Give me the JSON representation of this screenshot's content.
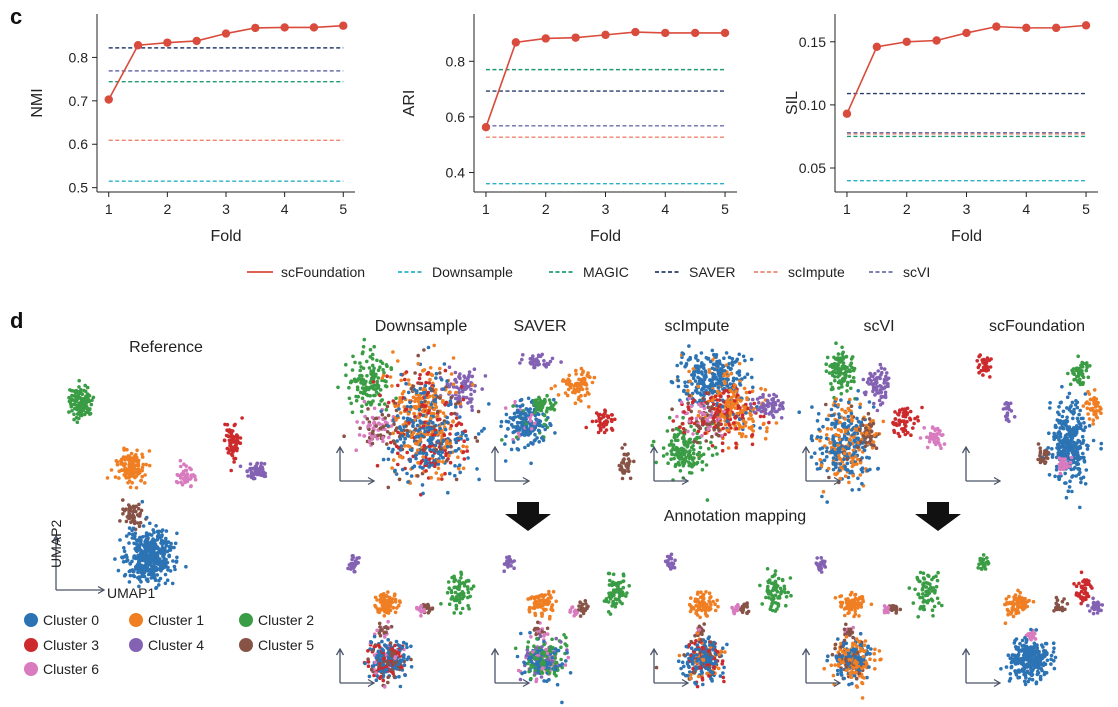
{
  "panel_labels": {
    "c": "c",
    "d": "d"
  },
  "colors": {
    "scFoundation": "#d94b3c",
    "Downsample": "#2bb0c8",
    "MAGIC": "#1f9a72",
    "SAVER": "#283c6e",
    "scImpute": "#f0836e",
    "scVI": "#6a6fa8",
    "Cluster 0": "#2c73b4",
    "Cluster 1": "#f07e22",
    "Cluster 2": "#3a9d45",
    "Cluster 3": "#cc2a2c",
    "Cluster 4": "#8462b3",
    "Cluster 5": "#875347",
    "Cluster 6": "#d97bbf",
    "axis": "#4a5568"
  },
  "chart_data": [
    {
      "type": "line",
      "xlabel": "Fold",
      "ylabel": "NMI",
      "xlim": [
        0.8,
        5.2
      ],
      "ylim": [
        0.49,
        0.9
      ],
      "xticks": [
        1,
        2,
        3,
        4,
        5
      ],
      "yticks": [
        "0.5",
        "0.6",
        "0.7",
        "0.8"
      ],
      "ytick_values": [
        0.5,
        0.6,
        0.7,
        0.8
      ],
      "x": [
        1,
        1.5,
        2,
        2.5,
        3,
        3.5,
        4,
        4.5,
        5
      ],
      "series": [
        {
          "name": "scFoundation",
          "style": "solid",
          "values": [
            0.703,
            0.828,
            0.834,
            0.838,
            0.855,
            0.868,
            0.869,
            0.869,
            0.873
          ]
        }
      ],
      "baselines": [
        {
          "name": "Downsample",
          "value": 0.515
        },
        {
          "name": "MAGIC",
          "value": 0.744
        },
        {
          "name": "SAVER",
          "value": 0.822
        },
        {
          "name": "scImpute",
          "value": 0.609
        },
        {
          "name": "scVI",
          "value": 0.769
        }
      ]
    },
    {
      "type": "line",
      "xlabel": "Fold",
      "ylabel": "ARI",
      "xlim": [
        0.8,
        5.2
      ],
      "ylim": [
        0.33,
        0.97
      ],
      "xticks": [
        1,
        2,
        3,
        4,
        5
      ],
      "yticks": [
        "0.4",
        "0.6",
        "0.8"
      ],
      "ytick_values": [
        0.4,
        0.6,
        0.8
      ],
      "x": [
        1,
        1.5,
        2,
        2.5,
        3,
        3.5,
        4,
        4.5,
        5
      ],
      "series": [
        {
          "name": "scFoundation",
          "style": "solid",
          "values": [
            0.563,
            0.868,
            0.882,
            0.885,
            0.895,
            0.905,
            0.902,
            0.902,
            0.902
          ]
        }
      ],
      "baselines": [
        {
          "name": "Downsample",
          "value": 0.36
        },
        {
          "name": "MAGIC",
          "value": 0.77
        },
        {
          "name": "SAVER",
          "value": 0.693
        },
        {
          "name": "scImpute",
          "value": 0.527
        },
        {
          "name": "scVI",
          "value": 0.568
        }
      ]
    },
    {
      "type": "line",
      "xlabel": "Fold",
      "ylabel": "SIL",
      "xlim": [
        0.8,
        5.2
      ],
      "ylim": [
        0.031,
        0.172
      ],
      "xticks": [
        1,
        2,
        3,
        4,
        5
      ],
      "yticks": [
        "0.05",
        "0.10",
        "0.15"
      ],
      "ytick_values": [
        0.05,
        0.1,
        0.15
      ],
      "x": [
        1,
        1.5,
        2,
        2.5,
        3,
        3.5,
        4,
        4.5,
        5
      ],
      "series": [
        {
          "name": "scFoundation",
          "style": "solid",
          "values": [
            0.093,
            0.146,
            0.15,
            0.151,
            0.157,
            0.162,
            0.161,
            0.161,
            0.163
          ]
        }
      ],
      "baselines": [
        {
          "name": "Downsample",
          "value": 0.04
        },
        {
          "name": "MAGIC",
          "value": 0.075
        },
        {
          "name": "SAVER",
          "value": 0.109
        },
        {
          "name": "scImpute",
          "value": 0.077
        },
        {
          "name": "scVI",
          "value": 0.078
        }
      ]
    }
  ],
  "legend_c": [
    "scFoundation",
    "Downsample",
    "MAGIC",
    "SAVER",
    "scImpute",
    "scVI"
  ],
  "umap": {
    "reference_title": "Reference",
    "axis_x": "UMAP1",
    "axis_y": "UMAP2",
    "method_titles": [
      "Downsample",
      "SAVER",
      "scImpute",
      "scVI",
      "scFoundation"
    ],
    "annotation_label": "Annotation mapping",
    "cluster_legend": [
      "Cluster 0",
      "Cluster 1",
      "Cluster 2",
      "Cluster 3",
      "Cluster 4",
      "Cluster 5",
      "Cluster 6"
    ]
  }
}
